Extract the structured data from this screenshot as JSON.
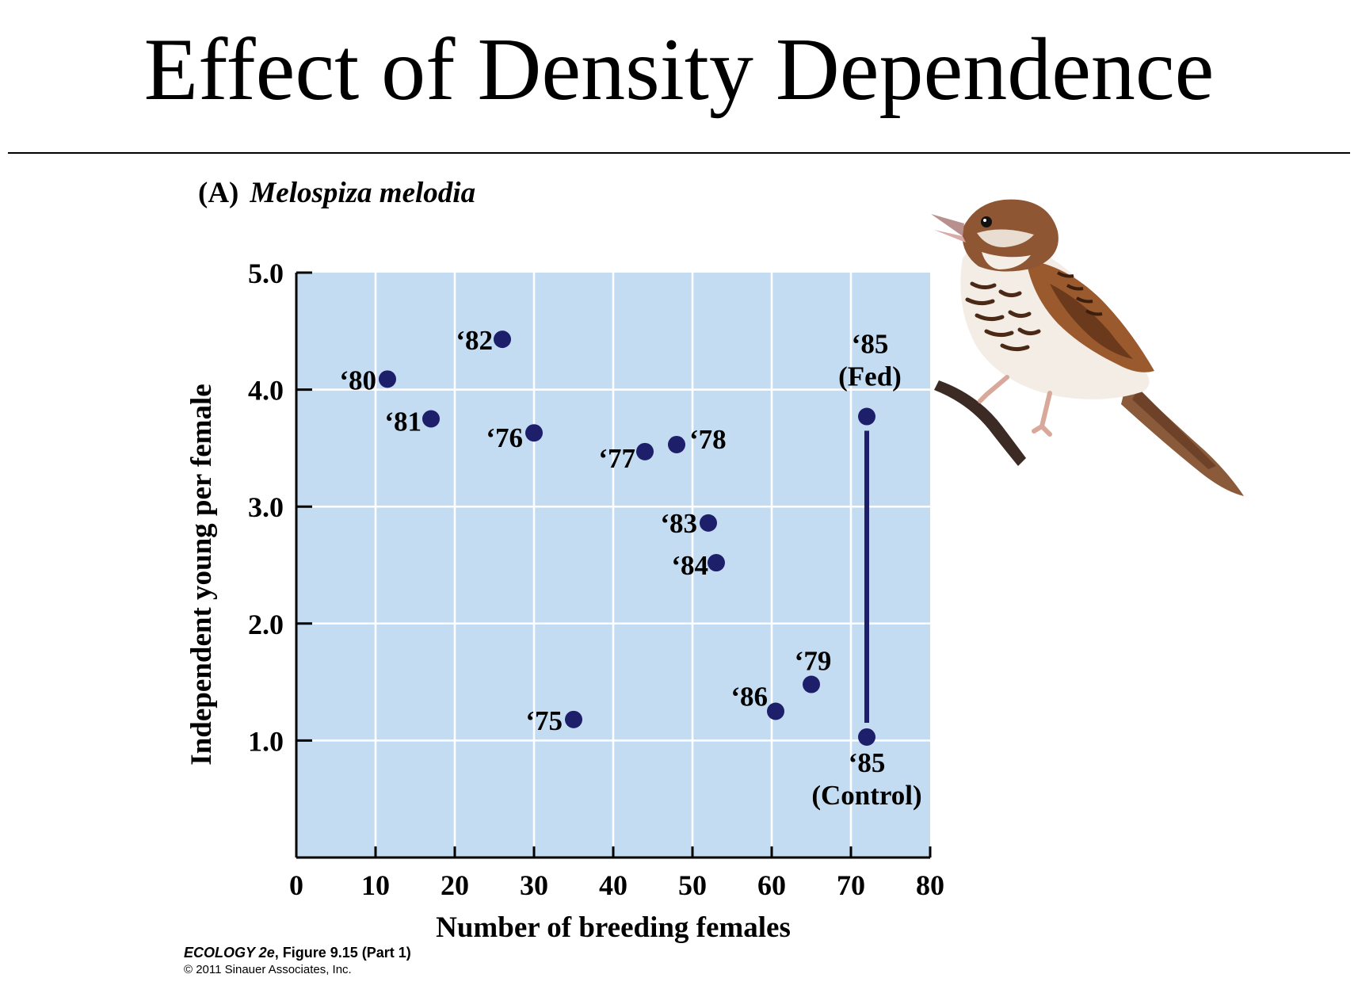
{
  "slide": {
    "title": "Effect of Density Dependence"
  },
  "panel": {
    "letter": "(A)",
    "species": "Melospiza melodia"
  },
  "credit": {
    "work": "ECOLOGY 2e",
    "figure": ", Figure 9.15 (Part 1)",
    "copyright": "© 2011 Sinauer Associates, Inc."
  },
  "colors": {
    "plot_background": "#c4dcf2",
    "point": "#1d1f6b",
    "grid": "#ffffff",
    "axis": "#000000"
  },
  "illustration": {
    "name": "song-sparrow-illustration"
  },
  "chart_data": {
    "type": "scatter",
    "title": "",
    "xlabel": "Number of breeding females",
    "ylabel": "Independent young per female",
    "xlim": [
      0,
      80
    ],
    "ylim": [
      0,
      5
    ],
    "xticks": [
      0,
      10,
      20,
      30,
      40,
      50,
      60,
      70,
      80
    ],
    "xtick_labels": [
      "0",
      "10",
      "20",
      "30",
      "40",
      "50",
      "60",
      "70",
      "80"
    ],
    "yticks": [
      1,
      2,
      3,
      4,
      5
    ],
    "ytick_labels": [
      "1.0",
      "2.0",
      "3.0",
      "4.0",
      "5.0"
    ],
    "grid": true,
    "points": [
      {
        "label": "‘75",
        "x": 35,
        "y": 1.18
      },
      {
        "label": "‘76",
        "x": 30,
        "y": 3.63
      },
      {
        "label": "‘77",
        "x": 44,
        "y": 3.47
      },
      {
        "label": "‘78",
        "x": 48,
        "y": 3.53
      },
      {
        "label": "‘79",
        "x": 65,
        "y": 1.48
      },
      {
        "label": "‘80",
        "x": 11.5,
        "y": 4.09
      },
      {
        "label": "‘81",
        "x": 17,
        "y": 3.75
      },
      {
        "label": "‘82",
        "x": 26,
        "y": 4.43
      },
      {
        "label": "‘83",
        "x": 52,
        "y": 2.86
      },
      {
        "label": "‘84",
        "x": 53,
        "y": 2.52
      },
      {
        "label": "‘85 (Fed)",
        "x": 72,
        "y": 3.77
      },
      {
        "label": "‘85 (Control)",
        "x": 72,
        "y": 1.03
      },
      {
        "label": "‘86",
        "x": 60.5,
        "y": 1.25
      }
    ],
    "connectors": [
      {
        "from": "‘85 (Fed)",
        "to": "‘85 (Control)"
      }
    ]
  }
}
